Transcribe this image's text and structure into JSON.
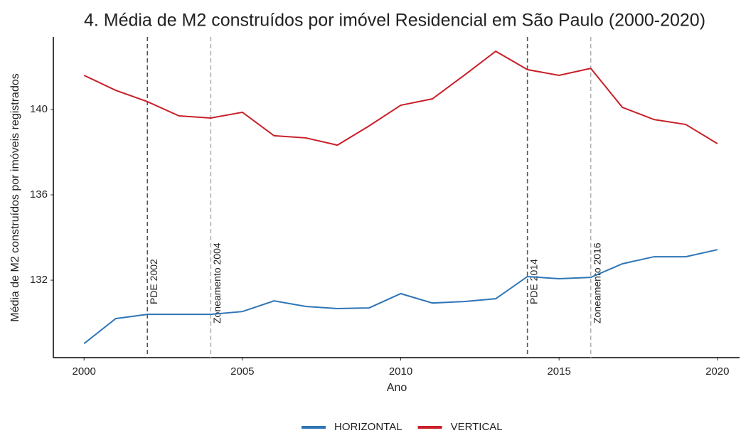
{
  "chart_data": {
    "type": "line",
    "title": "4. Média de M2 construídos por imóvel Residencial em São Paulo (2000-2020)",
    "x_label": "Ano",
    "y_label": "Média de M2 construídos por imóveis registrados",
    "x": [
      2000,
      2001,
      2002,
      2003,
      2004,
      2005,
      2006,
      2007,
      2008,
      2009,
      2010,
      2011,
      2012,
      2013,
      2014,
      2015,
      2016,
      2017,
      2018,
      2019,
      2020
    ],
    "series": [
      {
        "name": "HORIZONTAL",
        "color": "#2e75b6",
        "values": [
          129.03,
          130.2,
          130.4,
          130.4,
          130.4,
          130.53,
          131.03,
          130.77,
          130.67,
          130.7,
          131.37,
          130.93,
          131.0,
          131.13,
          132.17,
          132.07,
          132.13,
          132.77,
          133.1,
          133.1,
          133.43
        ]
      },
      {
        "name": "VERTICAL",
        "color": "#c8202a",
        "values": [
          141.6,
          140.9,
          140.37,
          139.7,
          139.6,
          139.87,
          138.77,
          138.67,
          138.33,
          139.23,
          140.2,
          140.5,
          141.6,
          142.73,
          141.87,
          141.6,
          141.93,
          140.1,
          139.53,
          139.3,
          138.4
        ]
      }
    ],
    "annotations": [
      {
        "x": 2002,
        "label": "PDE 2002",
        "color": "#555555"
      },
      {
        "x": 2004,
        "label": "Zoneamento 2004",
        "color": "#b0b0b0"
      },
      {
        "x": 2014,
        "label": "PDE 2014",
        "color": "#555555"
      },
      {
        "x": 2016,
        "label": "Zoneamento 2016",
        "color": "#b0b0b0"
      }
    ],
    "xlim": [
      1999.03,
      2020.7
    ],
    "xticks": [
      2000,
      2005,
      2010,
      2015,
      2020
    ],
    "ylim": [
      128.37,
      143.4
    ],
    "yticks": [
      132,
      136,
      140
    ],
    "grid": false,
    "legend_position": "bottom"
  }
}
